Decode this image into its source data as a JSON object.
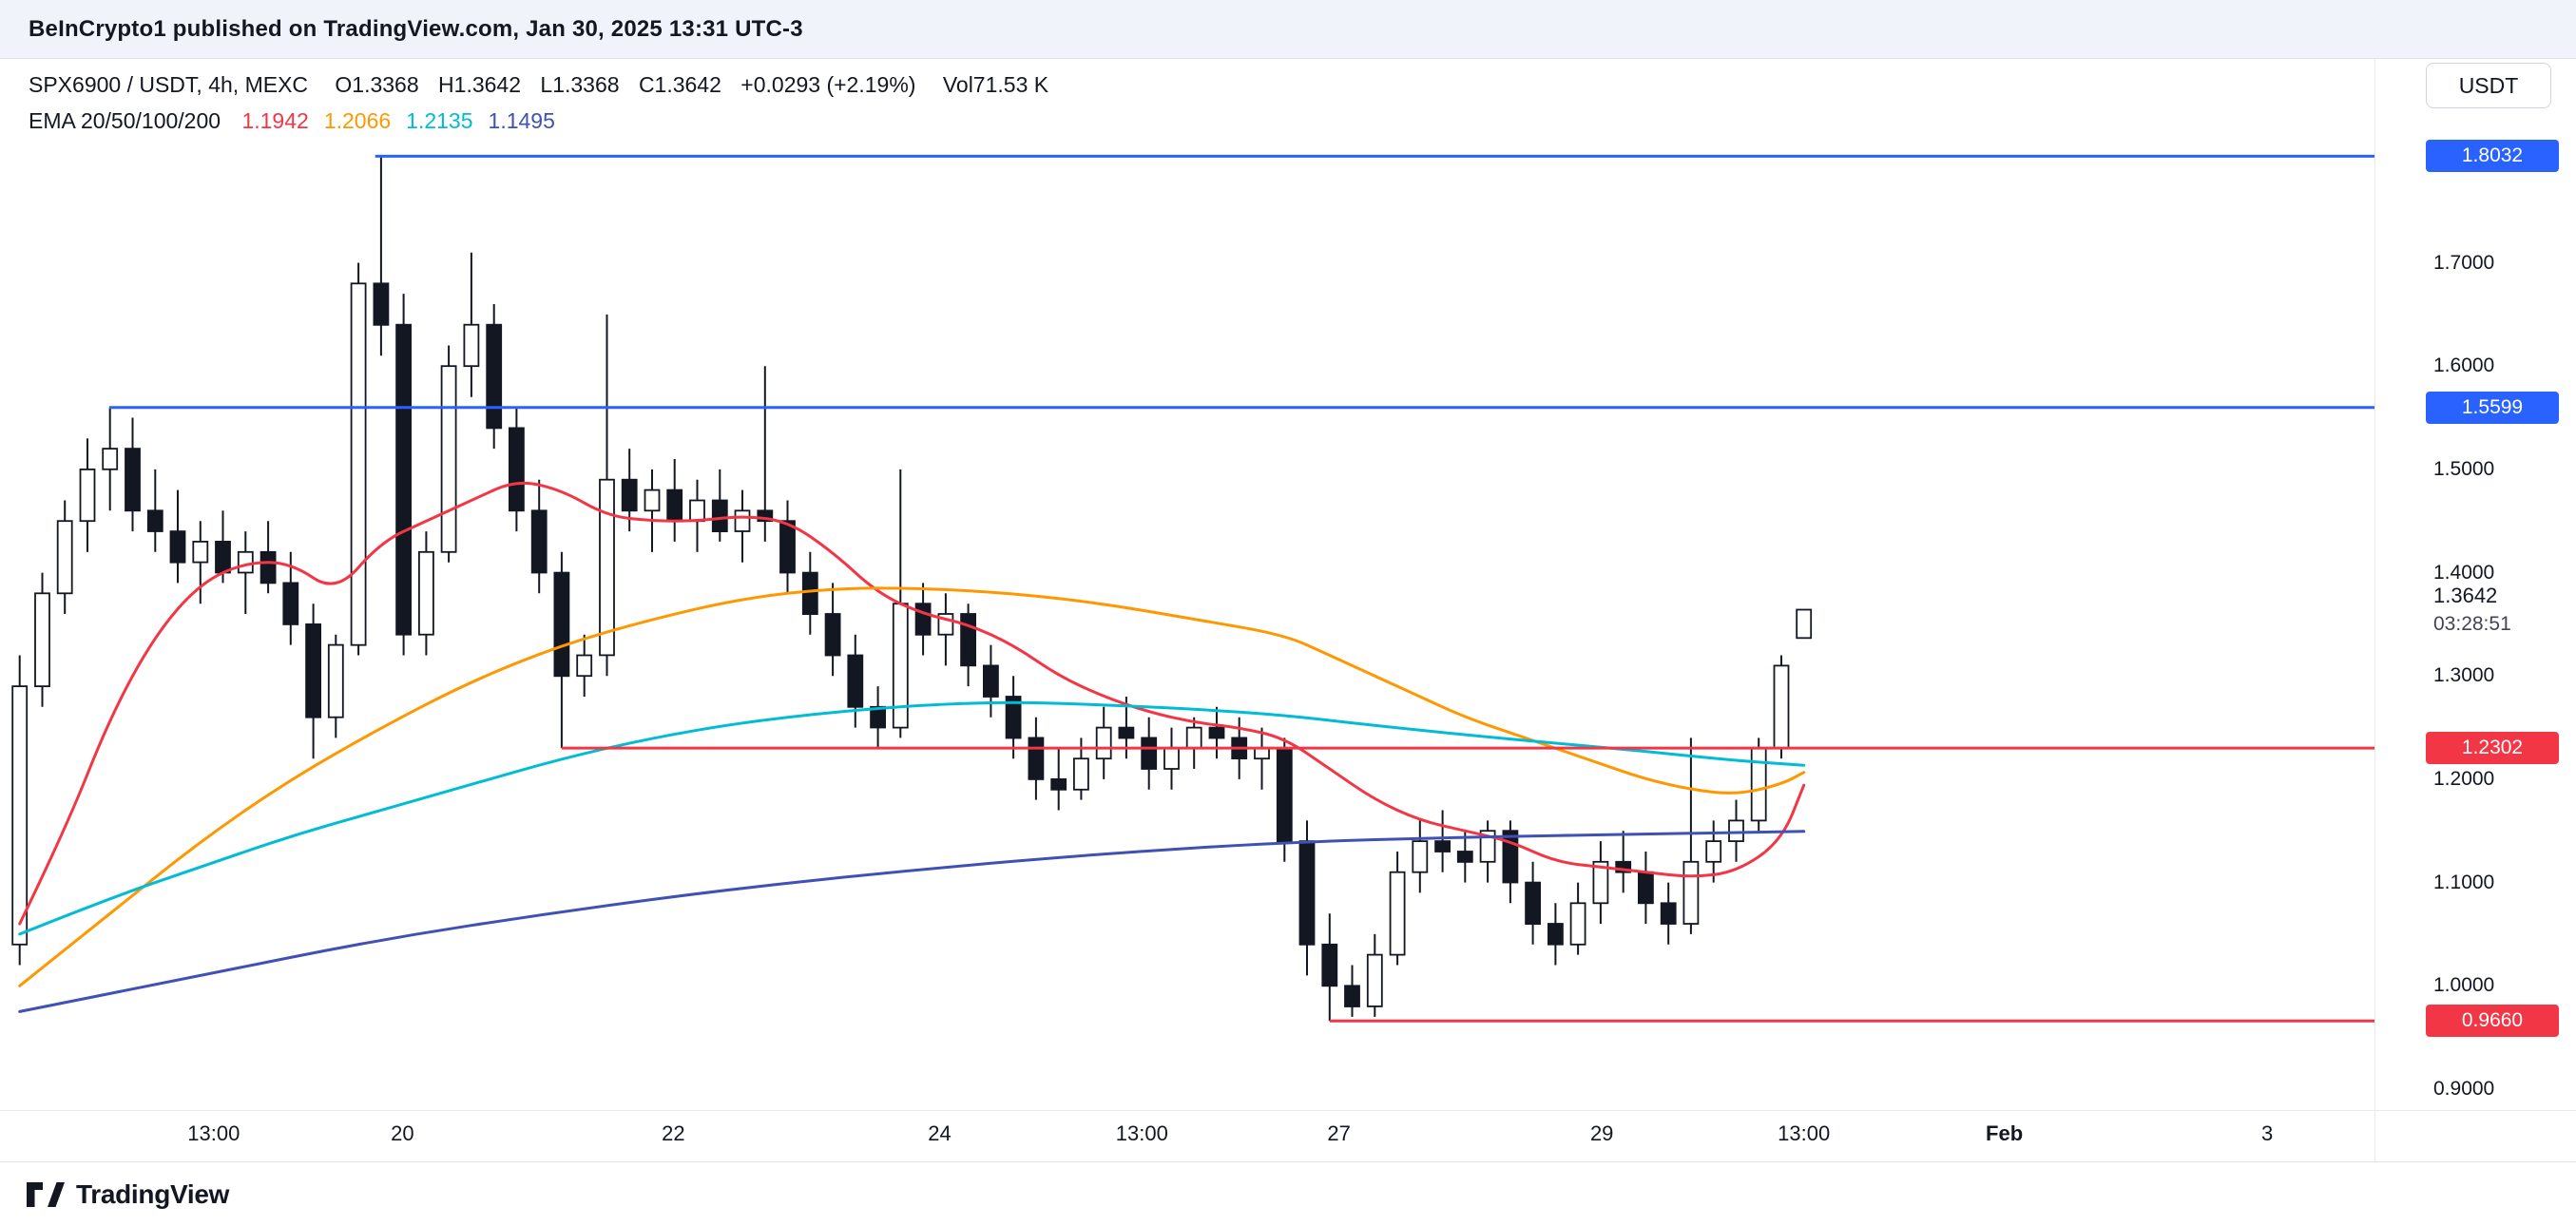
{
  "header_bar": {
    "text": "BeInCrypto1 published on TradingView.com, Jan 30, 2025 13:31 UTC-3"
  },
  "legend": {
    "symbol": "SPX6900 / USDT, 4h, MEXC",
    "open": "O1.3368",
    "high": "H1.3642",
    "low": "L1.3368",
    "close": "C1.3642",
    "change": "+0.0293 (+2.19%)",
    "volume": "Vol71.53 K",
    "ema_label": "EMA 20/50/100/200",
    "ema_values": [
      {
        "label": "1.1942",
        "color": "#f23645"
      },
      {
        "label": "1.2066",
        "color": "#ff9800"
      },
      {
        "label": "1.2135",
        "color": "#00bcd4"
      },
      {
        "label": "1.1495",
        "color": "#3f51b5"
      }
    ]
  },
  "currency_button": "USDT",
  "price_scale": {
    "ticks": [
      "1.7000",
      "1.6000",
      "1.5000",
      "1.4000",
      "1.3000",
      "1.2000",
      "1.1000",
      "1.0000",
      "0.9000"
    ],
    "current_price": "1.3642",
    "countdown": "03:28:51"
  },
  "time_axis": [
    {
      "label": "13:00",
      "ratio": 0.09
    },
    {
      "label": "20",
      "ratio": 0.1695
    },
    {
      "label": "22",
      "ratio": 0.2836
    },
    {
      "label": "24",
      "ratio": 0.3957
    },
    {
      "label": "13:00",
      "ratio": 0.4809
    },
    {
      "label": "27",
      "ratio": 0.5639
    },
    {
      "label": "29",
      "ratio": 0.6746
    },
    {
      "label": "13:00",
      "ratio": 0.7597
    },
    {
      "label": "Feb",
      "ratio": 0.8441,
      "major": true
    },
    {
      "label": "3",
      "ratio": 0.9548
    }
  ],
  "footer": {
    "logo_text": "TradingView"
  },
  "colors": {
    "up_candle": "#ffffff",
    "down_candle": "#131722",
    "candle_border": "#131722",
    "level_blue": "#2962ff",
    "level_red": "#f23645"
  },
  "chart_data": {
    "type": "candlestick",
    "title": "SPX6900 / USDT, 4h, MEXC",
    "interval": "4h",
    "ylim": [
      0.83,
      1.8974
    ],
    "candles": [
      [
        1.04,
        1.32,
        1.02,
        1.29
      ],
      [
        1.29,
        1.4,
        1.27,
        1.38
      ],
      [
        1.38,
        1.47,
        1.36,
        1.45
      ],
      [
        1.45,
        1.53,
        1.42,
        1.5
      ],
      [
        1.5,
        1.5599,
        1.46,
        1.52
      ],
      [
        1.52,
        1.55,
        1.44,
        1.46
      ],
      [
        1.46,
        1.5,
        1.42,
        1.44
      ],
      [
        1.44,
        1.48,
        1.39,
        1.41
      ],
      [
        1.41,
        1.45,
        1.37,
        1.43
      ],
      [
        1.43,
        1.46,
        1.39,
        1.4
      ],
      [
        1.4,
        1.44,
        1.36,
        1.42
      ],
      [
        1.42,
        1.45,
        1.38,
        1.39
      ],
      [
        1.39,
        1.42,
        1.33,
        1.35
      ],
      [
        1.35,
        1.37,
        1.22,
        1.26
      ],
      [
        1.26,
        1.34,
        1.24,
        1.33
      ],
      [
        1.33,
        1.7,
        1.32,
        1.68
      ],
      [
        1.68,
        1.8032,
        1.61,
        1.64
      ],
      [
        1.64,
        1.67,
        1.32,
        1.34
      ],
      [
        1.34,
        1.44,
        1.32,
        1.42
      ],
      [
        1.42,
        1.62,
        1.41,
        1.6
      ],
      [
        1.6,
        1.71,
        1.57,
        1.64
      ],
      [
        1.64,
        1.66,
        1.52,
        1.54
      ],
      [
        1.54,
        1.56,
        1.44,
        1.46
      ],
      [
        1.46,
        1.49,
        1.38,
        1.4
      ],
      [
        1.4,
        1.42,
        1.2302,
        1.3
      ],
      [
        1.3,
        1.34,
        1.28,
        1.32
      ],
      [
        1.32,
        1.65,
        1.3,
        1.49
      ],
      [
        1.49,
        1.52,
        1.44,
        1.46
      ],
      [
        1.46,
        1.5,
        1.42,
        1.48
      ],
      [
        1.48,
        1.51,
        1.43,
        1.45
      ],
      [
        1.45,
        1.49,
        1.42,
        1.47
      ],
      [
        1.47,
        1.5,
        1.43,
        1.44
      ],
      [
        1.44,
        1.48,
        1.41,
        1.46
      ],
      [
        1.46,
        1.6,
        1.43,
        1.45
      ],
      [
        1.45,
        1.47,
        1.38,
        1.4
      ],
      [
        1.4,
        1.42,
        1.34,
        1.36
      ],
      [
        1.36,
        1.39,
        1.3,
        1.32
      ],
      [
        1.32,
        1.34,
        1.25,
        1.27
      ],
      [
        1.27,
        1.29,
        1.23,
        1.25
      ],
      [
        1.25,
        1.5,
        1.24,
        1.37
      ],
      [
        1.37,
        1.39,
        1.32,
        1.34
      ],
      [
        1.34,
        1.38,
        1.31,
        1.36
      ],
      [
        1.36,
        1.37,
        1.29,
        1.31
      ],
      [
        1.31,
        1.33,
        1.26,
        1.28
      ],
      [
        1.28,
        1.3,
        1.22,
        1.24
      ],
      [
        1.24,
        1.26,
        1.18,
        1.2
      ],
      [
        1.2,
        1.23,
        1.17,
        1.19
      ],
      [
        1.19,
        1.24,
        1.18,
        1.22
      ],
      [
        1.22,
        1.27,
        1.2,
        1.25
      ],
      [
        1.25,
        1.28,
        1.22,
        1.24
      ],
      [
        1.24,
        1.26,
        1.19,
        1.21
      ],
      [
        1.21,
        1.25,
        1.19,
        1.23
      ],
      [
        1.23,
        1.26,
        1.21,
        1.25
      ],
      [
        1.25,
        1.27,
        1.22,
        1.24
      ],
      [
        1.24,
        1.26,
        1.2,
        1.22
      ],
      [
        1.22,
        1.25,
        1.19,
        1.23
      ],
      [
        1.23,
        1.24,
        1.12,
        1.14
      ],
      [
        1.14,
        1.16,
        1.01,
        1.04
      ],
      [
        1.04,
        1.07,
        0.966,
        1.0
      ],
      [
        1.0,
        1.02,
        0.97,
        0.98
      ],
      [
        0.98,
        1.05,
        0.97,
        1.03
      ],
      [
        1.03,
        1.13,
        1.02,
        1.11
      ],
      [
        1.11,
        1.16,
        1.09,
        1.14
      ],
      [
        1.14,
        1.17,
        1.11,
        1.13
      ],
      [
        1.13,
        1.15,
        1.1,
        1.12
      ],
      [
        1.12,
        1.16,
        1.1,
        1.15
      ],
      [
        1.15,
        1.16,
        1.08,
        1.1
      ],
      [
        1.1,
        1.12,
        1.04,
        1.06
      ],
      [
        1.06,
        1.08,
        1.02,
        1.04
      ],
      [
        1.04,
        1.1,
        1.03,
        1.08
      ],
      [
        1.08,
        1.14,
        1.06,
        1.12
      ],
      [
        1.12,
        1.15,
        1.09,
        1.11
      ],
      [
        1.11,
        1.13,
        1.06,
        1.08
      ],
      [
        1.08,
        1.1,
        1.04,
        1.06
      ],
      [
        1.06,
        1.24,
        1.05,
        1.12
      ],
      [
        1.12,
        1.16,
        1.1,
        1.14
      ],
      [
        1.14,
        1.18,
        1.12,
        1.16
      ],
      [
        1.16,
        1.24,
        1.15,
        1.23
      ],
      [
        1.23,
        1.32,
        1.22,
        1.31
      ],
      [
        1.3368,
        1.3642,
        1.3368,
        1.3642
      ]
    ],
    "emas": [
      {
        "name": "EMA20",
        "color": "#f23645",
        "points": [
          [
            0,
            1.06
          ],
          [
            2,
            1.15
          ],
          [
            4,
            1.26
          ],
          [
            6,
            1.34
          ],
          [
            8,
            1.39
          ],
          [
            10,
            1.41
          ],
          [
            12,
            1.41
          ],
          [
            14,
            1.38
          ],
          [
            16,
            1.43
          ],
          [
            18,
            1.45
          ],
          [
            20,
            1.47
          ],
          [
            22,
            1.49
          ],
          [
            24,
            1.48
          ],
          [
            26,
            1.455
          ],
          [
            28,
            1.45
          ],
          [
            30,
            1.45
          ],
          [
            32,
            1.455
          ],
          [
            34,
            1.45
          ],
          [
            36,
            1.42
          ],
          [
            38,
            1.38
          ],
          [
            40,
            1.36
          ],
          [
            42,
            1.35
          ],
          [
            44,
            1.33
          ],
          [
            46,
            1.3
          ],
          [
            48,
            1.28
          ],
          [
            50,
            1.265
          ],
          [
            52,
            1.255
          ],
          [
            54,
            1.25
          ],
          [
            56,
            1.24
          ],
          [
            58,
            1.21
          ],
          [
            60,
            1.18
          ],
          [
            62,
            1.16
          ],
          [
            64,
            1.15
          ],
          [
            66,
            1.14
          ],
          [
            68,
            1.12
          ],
          [
            70,
            1.115
          ],
          [
            72,
            1.11
          ],
          [
            74,
            1.105
          ],
          [
            76,
            1.11
          ],
          [
            78,
            1.14
          ],
          [
            79,
            1.1942
          ]
        ]
      },
      {
        "name": "EMA50",
        "color": "#ff9800",
        "points": [
          [
            0,
            1.0
          ],
          [
            4,
            1.07
          ],
          [
            8,
            1.14
          ],
          [
            12,
            1.2
          ],
          [
            16,
            1.25
          ],
          [
            20,
            1.295
          ],
          [
            24,
            1.33
          ],
          [
            28,
            1.355
          ],
          [
            32,
            1.375
          ],
          [
            36,
            1.385
          ],
          [
            40,
            1.385
          ],
          [
            44,
            1.38
          ],
          [
            48,
            1.37
          ],
          [
            52,
            1.355
          ],
          [
            56,
            1.34
          ],
          [
            58,
            1.32
          ],
          [
            60,
            1.3
          ],
          [
            62,
            1.28
          ],
          [
            64,
            1.26
          ],
          [
            66,
            1.245
          ],
          [
            68,
            1.23
          ],
          [
            70,
            1.215
          ],
          [
            72,
            1.2
          ],
          [
            74,
            1.19
          ],
          [
            76,
            1.185
          ],
          [
            78,
            1.195
          ],
          [
            79,
            1.2066
          ]
        ]
      },
      {
        "name": "EMA100",
        "color": "#00bcd4",
        "points": [
          [
            0,
            1.05
          ],
          [
            4,
            1.085
          ],
          [
            8,
            1.115
          ],
          [
            12,
            1.145
          ],
          [
            16,
            1.17
          ],
          [
            20,
            1.195
          ],
          [
            24,
            1.22
          ],
          [
            28,
            1.24
          ],
          [
            32,
            1.255
          ],
          [
            36,
            1.265
          ],
          [
            40,
            1.272
          ],
          [
            44,
            1.275
          ],
          [
            48,
            1.272
          ],
          [
            52,
            1.268
          ],
          [
            56,
            1.262
          ],
          [
            60,
            1.252
          ],
          [
            64,
            1.243
          ],
          [
            68,
            1.235
          ],
          [
            72,
            1.227
          ],
          [
            76,
            1.218
          ],
          [
            79,
            1.2135
          ]
        ]
      },
      {
        "name": "EMA200",
        "color": "#3f51b5",
        "points": [
          [
            0,
            0.975
          ],
          [
            8,
            1.01
          ],
          [
            16,
            1.045
          ],
          [
            24,
            1.072
          ],
          [
            32,
            1.095
          ],
          [
            40,
            1.113
          ],
          [
            48,
            1.128
          ],
          [
            56,
            1.139
          ],
          [
            64,
            1.144
          ],
          [
            72,
            1.147
          ],
          [
            79,
            1.1495
          ]
        ]
      }
    ],
    "levels": [
      {
        "label": "1.8032",
        "value": 1.8032,
        "color": "#2962ff",
        "start_ratio": 0.158
      },
      {
        "label": "1.5599",
        "value": 1.5599,
        "color": "#2962ff",
        "start_ratio": 0.046
      },
      {
        "label": "1.2302",
        "value": 1.2302,
        "color": "#f23645",
        "start_ratio": 0.2365
      },
      {
        "label": "0.9660",
        "value": 0.966,
        "color": "#f23645",
        "start_ratio": 0.56
      }
    ]
  }
}
